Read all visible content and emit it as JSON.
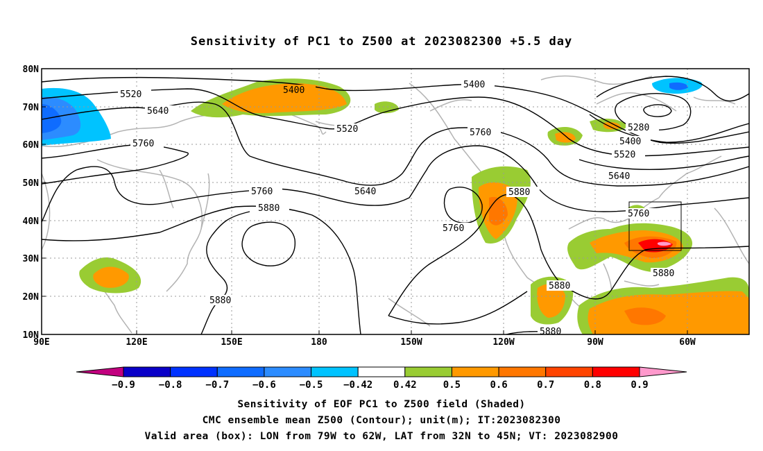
{
  "title": "Sensitivity of PC1 to Z500 at 2023082300 +5.5 day",
  "lat_labels": [
    "80N",
    "70N",
    "60N",
    "50N",
    "40N",
    "30N",
    "20N",
    "10N"
  ],
  "lon_labels": [
    "90E",
    "120E",
    "150E",
    "180",
    "150W",
    "120W",
    "90W",
    "60W"
  ],
  "contour_labels": [
    "5400",
    "5520",
    "5640",
    "5760",
    "5880",
    "5400",
    "5520",
    "5760",
    "5640",
    "5760",
    "5880",
    "5280",
    "5400",
    "5520",
    "5640",
    "5760",
    "5880",
    "5880",
    "5760",
    "5880",
    "5880"
  ],
  "colorbar": {
    "colors": [
      "#c2007f",
      "#0a00c8",
      "#0032ff",
      "#0f6cff",
      "#2c8cff",
      "#00c3ff",
      "#ffffff",
      "#99cc33",
      "#ff9900",
      "#ff7700",
      "#ff4400",
      "#ff0000",
      "#ff99cc"
    ],
    "labels": [
      "−0.9",
      "−0.8",
      "−0.7",
      "−0.6",
      "−0.5",
      "−0.42",
      "0.42",
      "0.5",
      "0.6",
      "0.7",
      "0.8",
      "0.9"
    ]
  },
  "footer": {
    "line1": "Sensitivity of EOF PC1 to Z500 field (Shaded)",
    "line2": "CMC ensemble mean Z500 (Contour); unit(m); IT:2023082300",
    "line3": "Valid area (box): LON from 79W to 62W, LAT from 32N to 45N; VT: 2023082900"
  },
  "map": {
    "lon_range": [
      "90E",
      "50W"
    ],
    "lat_range": [
      "10N",
      "80N"
    ],
    "valid_box": {
      "lon": [
        "79W",
        "62W"
      ],
      "lat": [
        "32N",
        "45N"
      ]
    }
  }
}
